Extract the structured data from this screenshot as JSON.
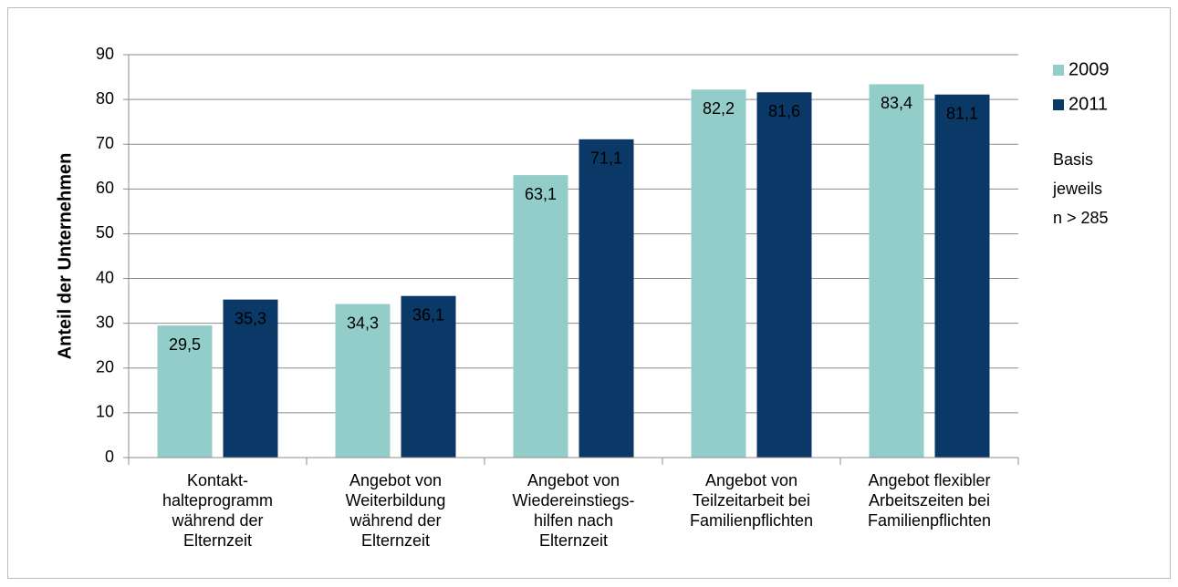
{
  "chart_data": {
    "type": "bar",
    "ylabel": "Anteil der Unternehmen",
    "categories": [
      "Kontakt-\nhalteprogramm\nwährend der\nElternzeit",
      "Angebot von\nWeiterbildung\nwährend der\nElternzeit",
      "Angebot von\nWiedereinstiegs-\nhilfen nach\nElternzeit",
      "Angebot von\nTeilzeitarbeit bei\nFamilienpflichten",
      "Angebot flexibler\nArbeitszeiten bei\nFamilienpflichten"
    ],
    "series": [
      {
        "name": "2009",
        "color": "#93cdc9",
        "label_color": "#000000",
        "values": [
          29.5,
          34.3,
          63.1,
          82.2,
          83.4
        ],
        "value_labels": [
          "29,5",
          "34,3",
          "63,1",
          "82,2",
          "83,4"
        ]
      },
      {
        "name": "2011",
        "color": "#0a3867",
        "label_color": "#ffffff",
        "values": [
          35.3,
          36.1,
          71.1,
          81.6,
          81.1
        ],
        "value_labels": [
          "35,3",
          "36,1",
          "71,1",
          "81,6",
          "81,1"
        ]
      }
    ],
    "annotation": "Basis\njeweils\nn > 285",
    "ylim": [
      0,
      90
    ],
    "yticks": [
      0,
      10,
      20,
      30,
      40,
      50,
      60,
      70,
      80,
      90
    ],
    "grid": true,
    "legend": "right"
  }
}
